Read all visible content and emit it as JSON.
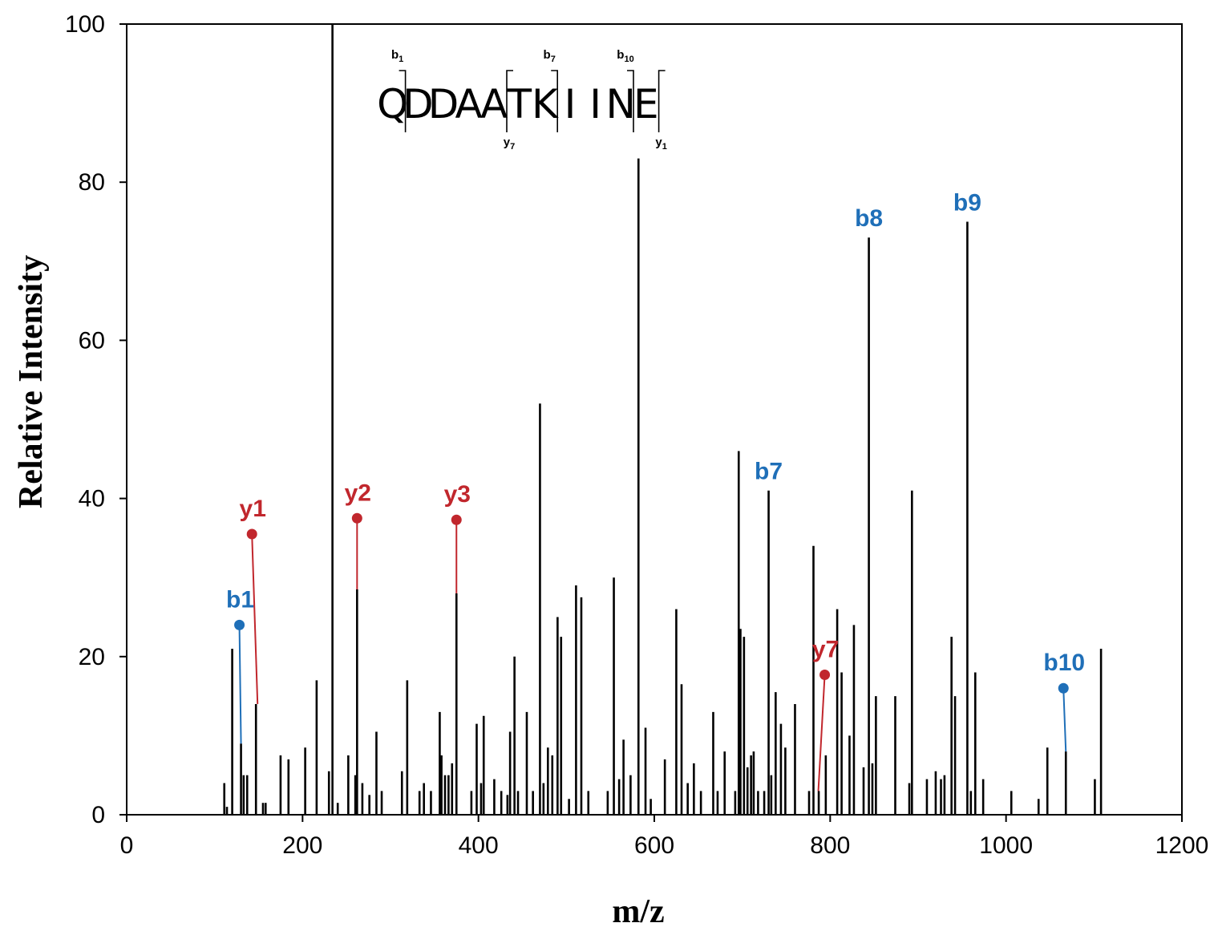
{
  "chart_data": {
    "type": "bar",
    "xlabel": "m/z",
    "ylabel": "Relative Intensity",
    "xlim": [
      0,
      1200
    ],
    "ylim": [
      0,
      100
    ],
    "x_ticks": [
      "0",
      "200",
      "400",
      "600",
      "800",
      "1000",
      "1200"
    ],
    "y_ticks": [
      "0",
      "20",
      "40",
      "60",
      "80",
      "100"
    ],
    "grid": false,
    "peaks": [
      [
        111,
        4
      ],
      [
        114,
        1
      ],
      [
        120,
        21
      ],
      [
        130,
        9
      ],
      [
        133,
        5
      ],
      [
        137,
        5
      ],
      [
        147,
        14
      ],
      [
        155,
        1.5
      ],
      [
        158,
        1.5
      ],
      [
        175,
        7.5
      ],
      [
        184,
        7
      ],
      [
        203,
        8.5
      ],
      [
        216,
        17
      ],
      [
        230,
        5.5
      ],
      [
        234,
        100
      ],
      [
        240,
        1.5
      ],
      [
        252,
        7.5
      ],
      [
        260,
        5
      ],
      [
        262,
        28.5
      ],
      [
        268,
        4
      ],
      [
        276,
        2.5
      ],
      [
        284,
        10.5
      ],
      [
        290,
        3
      ],
      [
        313,
        5.5
      ],
      [
        319,
        17
      ],
      [
        333,
        3
      ],
      [
        338,
        4
      ],
      [
        346,
        3
      ],
      [
        356,
        13
      ],
      [
        358,
        7.5
      ],
      [
        362,
        5
      ],
      [
        366,
        5
      ],
      [
        370,
        6.5
      ],
      [
        375,
        28
      ],
      [
        392,
        3
      ],
      [
        398,
        11.5
      ],
      [
        403,
        4
      ],
      [
        406,
        12.5
      ],
      [
        418,
        4.5
      ],
      [
        426,
        3
      ],
      [
        433,
        2.5
      ],
      [
        436,
        10.5
      ],
      [
        441,
        20
      ],
      [
        445,
        3
      ],
      [
        455,
        13
      ],
      [
        462,
        3
      ],
      [
        470,
        52
      ],
      [
        474,
        4
      ],
      [
        479,
        8.5
      ],
      [
        484,
        7.5
      ],
      [
        490,
        25
      ],
      [
        494,
        22.5
      ],
      [
        503,
        2
      ],
      [
        511,
        29
      ],
      [
        517,
        27.5
      ],
      [
        525,
        3
      ],
      [
        547,
        3
      ],
      [
        554,
        30
      ],
      [
        560,
        4.5
      ],
      [
        565,
        9.5
      ],
      [
        573,
        5
      ],
      [
        582,
        83
      ],
      [
        590,
        11
      ],
      [
        596,
        2
      ],
      [
        612,
        7
      ],
      [
        625,
        26
      ],
      [
        631,
        16.5
      ],
      [
        638,
        4
      ],
      [
        645,
        6.5
      ],
      [
        653,
        3
      ],
      [
        667,
        13
      ],
      [
        672,
        3
      ],
      [
        680,
        8
      ],
      [
        692,
        3
      ],
      [
        696,
        46
      ],
      [
        698,
        23.5
      ],
      [
        702,
        22.5
      ],
      [
        706,
        6
      ],
      [
        710,
        7.5
      ],
      [
        713,
        8
      ],
      [
        718,
        3
      ],
      [
        725,
        3
      ],
      [
        730,
        41
      ],
      [
        733,
        5
      ],
      [
        738,
        15.5
      ],
      [
        744,
        11.5
      ],
      [
        749,
        8.5
      ],
      [
        760,
        14
      ],
      [
        776,
        3
      ],
      [
        781,
        34
      ],
      [
        787,
        3
      ],
      [
        795,
        7.5
      ],
      [
        808,
        26
      ],
      [
        813,
        18
      ],
      [
        822,
        10
      ],
      [
        827,
        24
      ],
      [
        838,
        6
      ],
      [
        844,
        73
      ],
      [
        848,
        6.5
      ],
      [
        852,
        15
      ],
      [
        874,
        15
      ],
      [
        890,
        4
      ],
      [
        893,
        41
      ],
      [
        910,
        4.5
      ],
      [
        920,
        5.5
      ],
      [
        926,
        4.5
      ],
      [
        930,
        5
      ],
      [
        938,
        22.5
      ],
      [
        942,
        15
      ],
      [
        956,
        75
      ],
      [
        960,
        3
      ],
      [
        965,
        18
      ],
      [
        974,
        4.5
      ],
      [
        1006,
        3
      ],
      [
        1037,
        2
      ],
      [
        1047,
        8.5
      ],
      [
        1068,
        8
      ],
      [
        1101,
        4.5
      ],
      [
        1108,
        21
      ]
    ],
    "annotations": [
      {
        "label": "b1",
        "ion": "b",
        "mz": 130,
        "marker_y": 24,
        "peak_y": 9,
        "color": "#1f6fb8"
      },
      {
        "label": "y1",
        "ion": "y",
        "mz": 147,
        "marker_y": 35.5,
        "peak_y": 14,
        "color": "#c1272d"
      },
      {
        "label": "y2",
        "ion": "y",
        "mz": 262,
        "marker_y": 37.5,
        "peak_y": 28.5,
        "color": "#c1272d"
      },
      {
        "label": "y3",
        "ion": "y",
        "mz": 375,
        "marker_y": 37.3,
        "peak_y": 28,
        "color": "#c1272d"
      },
      {
        "label": "b7",
        "ion": "b",
        "mz": 730,
        "marker_y": null,
        "peak_y": 41,
        "color": "#1f6fb8"
      },
      {
        "label": "y7",
        "ion": "y",
        "mz": 792,
        "marker_y": 17.7,
        "peak_y": 3,
        "color": "#c1272d"
      },
      {
        "label": "b8",
        "ion": "b",
        "mz": 844,
        "marker_y": null,
        "peak_y": 73,
        "color": "#1f6fb8"
      },
      {
        "label": "b9",
        "ion": "b",
        "mz": 956,
        "marker_y": null,
        "peak_y": 75,
        "color": "#1f6fb8"
      },
      {
        "label": "b10",
        "ion": "b",
        "mz": 1068,
        "marker_y": 16,
        "peak_y": 8,
        "color": "#1f6fb8"
      }
    ],
    "sequence": {
      "residues": [
        "Q",
        "D",
        "D",
        "A",
        "A",
        "T",
        "K",
        "I",
        "I",
        "N",
        "E"
      ],
      "b_labels": [
        {
          "after": 1,
          "base": "b",
          "sub": "1"
        },
        {
          "after": 7,
          "base": "b",
          "sub": "7"
        },
        {
          "after": 10,
          "base": "b",
          "sub": "10"
        }
      ],
      "y_labels": [
        {
          "before": 5,
          "base": "y",
          "sub": "7"
        },
        {
          "before": 11,
          "base": "y",
          "sub": "1"
        }
      ]
    }
  },
  "colors": {
    "b_ion": "#1f6fb8",
    "y_ion": "#c1272d",
    "peak": "#000000"
  }
}
